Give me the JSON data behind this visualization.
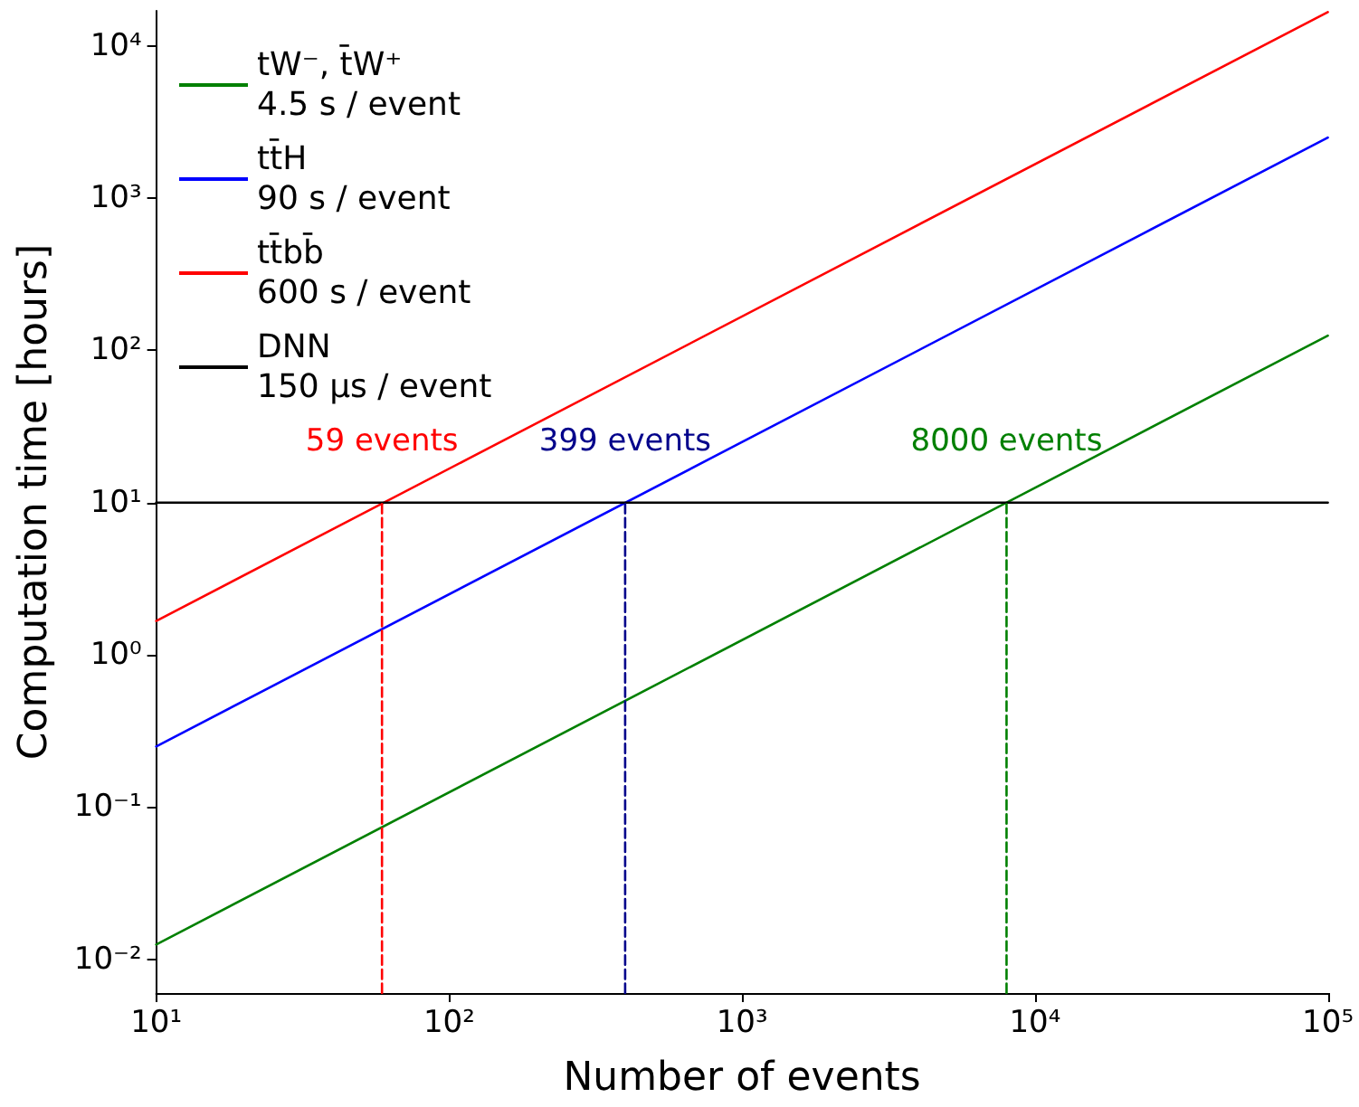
{
  "chart_data": {
    "type": "line",
    "xlabel": "Number of events",
    "ylabel": "Computation time [hours]",
    "log": "xy",
    "grid": false,
    "legend": "top left",
    "marker": "none",
    "xlim": [
      10,
      100000
    ],
    "ylim": [
      0.006,
      17000
    ],
    "xticks": [
      {
        "value": 10,
        "label": "10¹"
      },
      {
        "value": 100,
        "label": "10²"
      },
      {
        "value": 1000,
        "label": "10³"
      },
      {
        "value": 10000,
        "label": "10⁴"
      },
      {
        "value": 100000,
        "label": "10⁵"
      }
    ],
    "yticks": [
      {
        "value": 0.01,
        "label": "10⁻²"
      },
      {
        "value": 0.1,
        "label": "10⁻¹"
      },
      {
        "value": 1,
        "label": "10⁰"
      },
      {
        "value": 10,
        "label": "10¹"
      },
      {
        "value": 100,
        "label": "10²"
      },
      {
        "value": 1000,
        "label": "10³"
      },
      {
        "value": 10000,
        "label": "10⁴"
      }
    ],
    "series": [
      {
        "name": "tW⁻, t̄W⁺\n4.5 s / event",
        "color": "#008000",
        "x": [
          10,
          100000
        ],
        "values": [
          0.0125,
          125
        ]
      },
      {
        "name": "tt̄H\n90 s / event",
        "color": "#0000ff",
        "x": [
          10,
          100000
        ],
        "values": [
          0.25,
          2500
        ]
      },
      {
        "name": "tt̄bb̄\n600 s / event",
        "color": "#ff0000",
        "x": [
          10,
          100000
        ],
        "values": [
          1.67,
          16700
        ]
      },
      {
        "name": "DNN\n150 μs / event",
        "color": "#000000",
        "x": [
          10,
          100000
        ],
        "values": [
          10,
          10
        ]
      },
      {
        "color": "#ff0000",
        "line_style": "dashed",
        "x": [
          59,
          59
        ],
        "values": [
          0.006,
          10
        ]
      },
      {
        "color": "#00008b",
        "line_style": "dashed",
        "x": [
          399,
          399
        ],
        "values": [
          0.006,
          10
        ]
      },
      {
        "color": "#008000",
        "line_style": "dashed",
        "x": [
          8000,
          8000
        ],
        "values": [
          0.006,
          10
        ]
      }
    ],
    "annotations": [
      {
        "text": "59 events",
        "x": 59,
        "y": 10
      },
      {
        "text": "399 events",
        "x": 399,
        "y": 10
      },
      {
        "text": "8000 events",
        "x": 8000,
        "y": 10
      }
    ]
  }
}
